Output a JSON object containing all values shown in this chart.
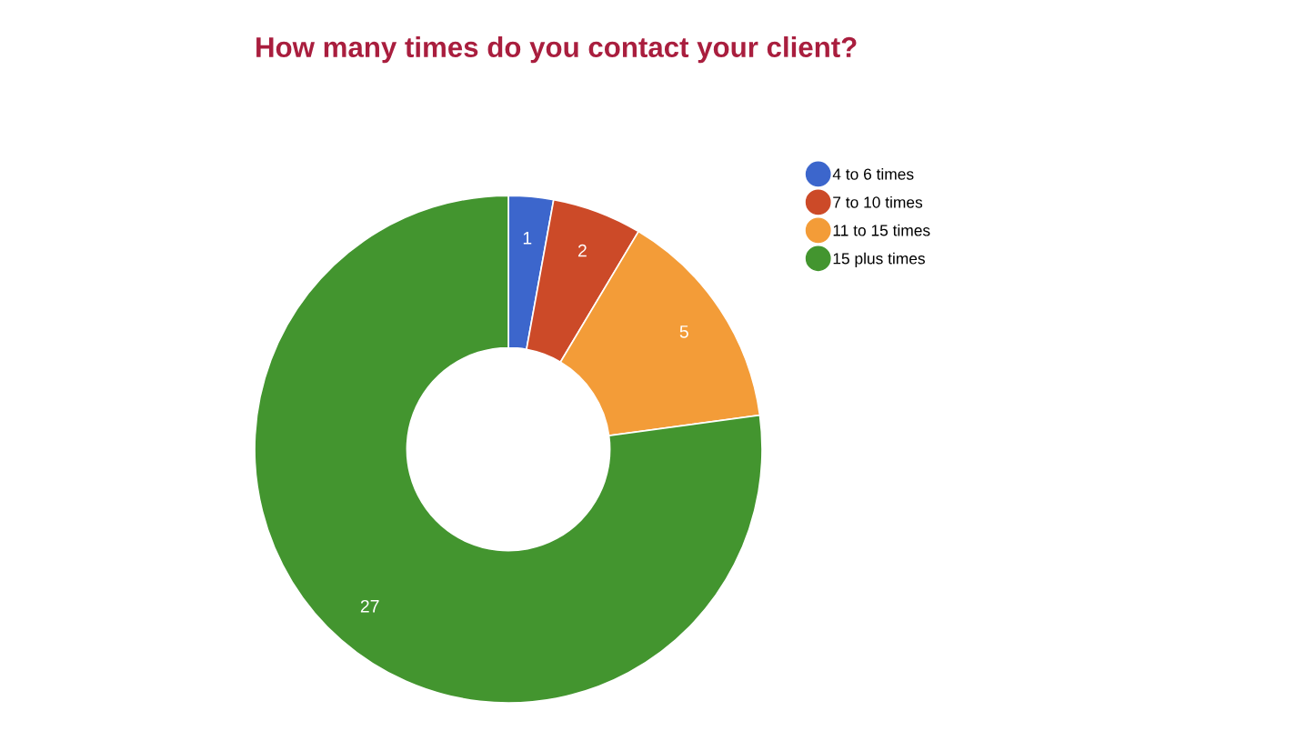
{
  "chart_data": {
    "type": "donut",
    "title": "How many times do you contact your client?",
    "categories": [
      "4 to 6 times",
      "7 to 10 times",
      "11 to 15 times",
      "15 plus times"
    ],
    "values": [
      1,
      2,
      5,
      27
    ],
    "colors": [
      "#3c66cc",
      "#cc4a28",
      "#f39c38",
      "#43952f"
    ],
    "data_labels": true,
    "legend": "right"
  }
}
